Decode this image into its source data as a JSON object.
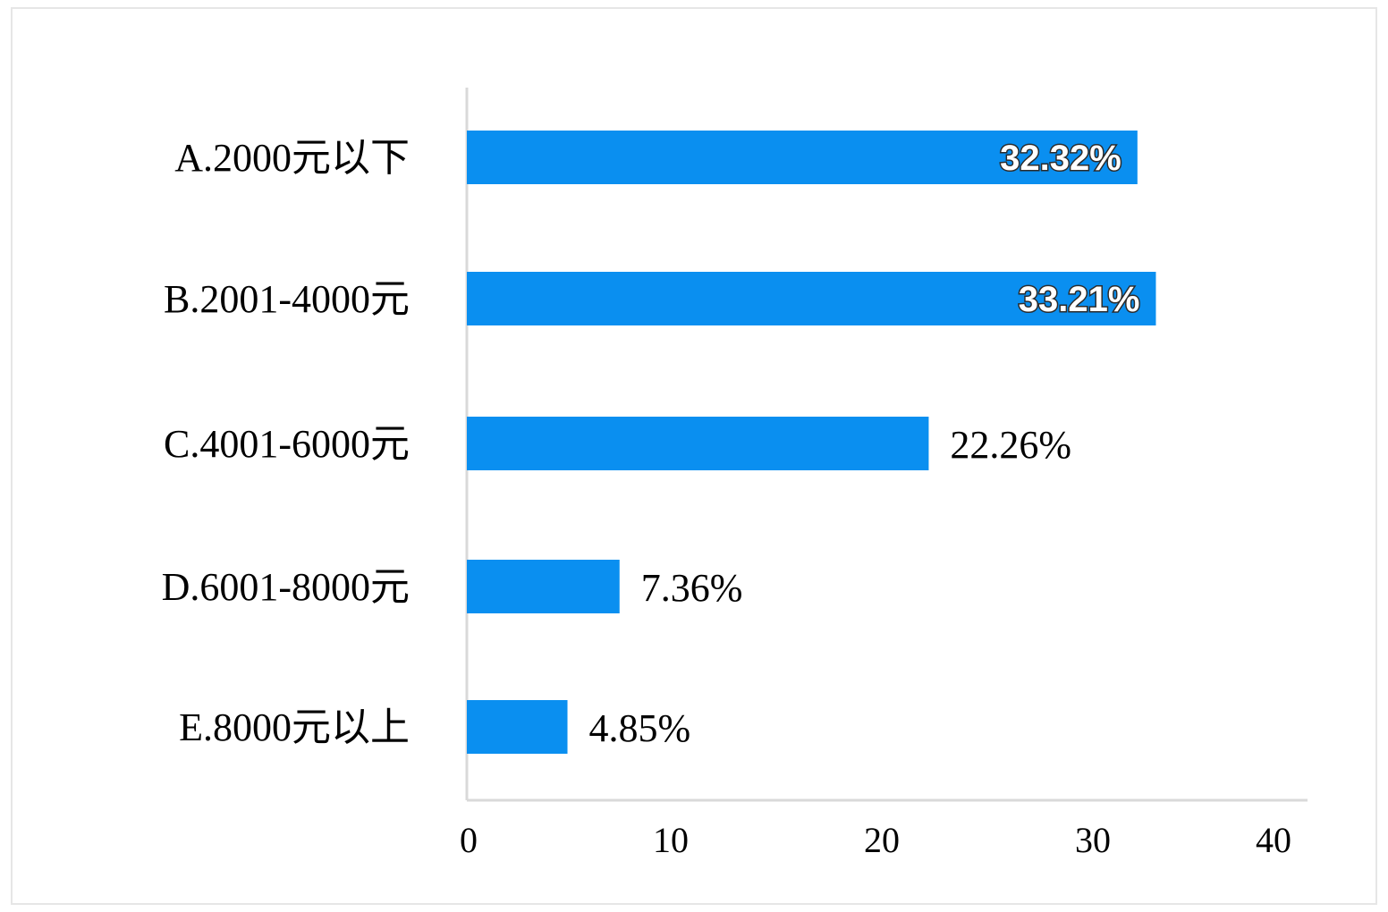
{
  "chart_data": {
    "type": "bar",
    "orientation": "horizontal",
    "categories": [
      "A.2000元以下",
      "B.2001-4000元",
      "C.4001-6000元",
      "D.6001-8000元",
      "E.8000元以上"
    ],
    "values": [
      32.32,
      33.21,
      22.26,
      7.36,
      4.85
    ],
    "value_labels": [
      "32.32%",
      "33.21%",
      "22.26%",
      "7.36%",
      "4.85%"
    ],
    "x_ticks": [
      "0",
      "10",
      "20",
      "30",
      "40"
    ],
    "xlim": [
      0,
      40
    ],
    "grid": false,
    "legend": "none",
    "bar_color": "#0a8ff0",
    "axis_color": "#d9d9d9"
  }
}
